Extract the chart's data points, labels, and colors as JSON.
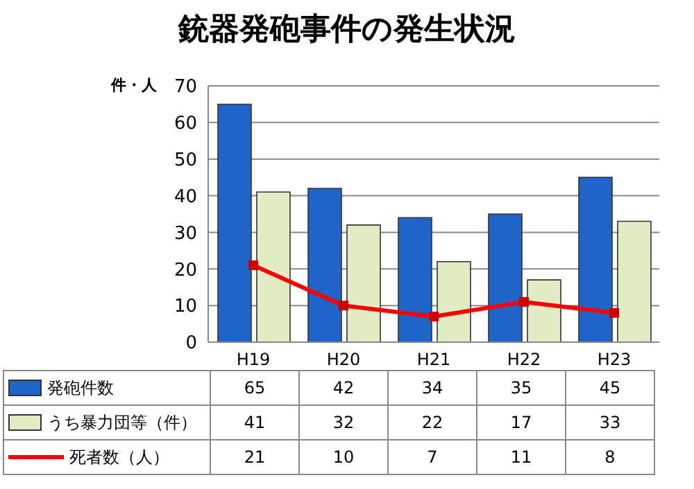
{
  "chart_data": {
    "type": "bar",
    "title": "銃器発砲事件の発生状況",
    "ylabel": "件・人",
    "categories": [
      "H19",
      "H20",
      "H21",
      "H22",
      "H23"
    ],
    "series": [
      {
        "name": "発砲件数",
        "color": "#1f64c8",
        "values": [
          65,
          42,
          34,
          35,
          45
        ]
      },
      {
        "name": "うち暴力団等（件）",
        "color": "#e2ecc4",
        "values": [
          41,
          32,
          22,
          17,
          33
        ]
      },
      {
        "name": "死者数（人）",
        "type": "line",
        "color": "#ff0000",
        "values": [
          21,
          10,
          7,
          11,
          8
        ]
      }
    ],
    "ylim": [
      0,
      70
    ],
    "yticks": [
      0,
      10,
      20,
      30,
      40,
      50,
      60,
      70
    ],
    "grid": "y",
    "legend": "bottom",
    "data_labels": true,
    "marker": "square",
    "line_style": "solid"
  }
}
